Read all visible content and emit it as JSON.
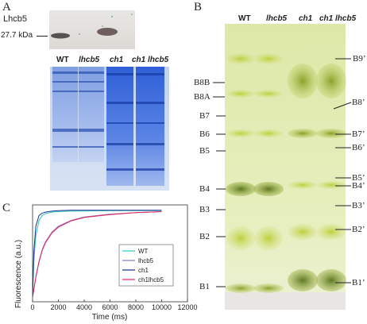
{
  "panel_a": {
    "letter": "A",
    "blot_title": "Lhcb5",
    "size_marker": "27.7 kDa",
    "lanes": [
      {
        "label": "WT",
        "italic": false
      },
      {
        "label": "lhcb5",
        "italic": true
      },
      {
        "label": "ch1",
        "italic": true
      },
      {
        "label": "ch1 lhcb5",
        "italic": true
      }
    ]
  },
  "panel_b": {
    "letter": "B",
    "lanes": [
      {
        "label": "WT",
        "italic": false
      },
      {
        "label": "lhcb5",
        "italic": true
      },
      {
        "label": "ch1",
        "italic": true
      },
      {
        "label": "ch1 lhcb5",
        "italic": true
      }
    ],
    "left_bands": [
      "B8B",
      "B8A",
      "B7",
      "B6",
      "B5",
      "B4",
      "B3",
      "B2",
      "B1"
    ],
    "right_bands": [
      "B9’",
      "B8’",
      "B7’",
      "B6’",
      "B5’",
      "B4’",
      "B3’",
      "B2’",
      "B1’"
    ]
  },
  "panel_c": {
    "letter": "C",
    "chart_data": {
      "type": "line",
      "xlabel": "Time (ms)",
      "ylabel": "Fluorescence (a.u.)",
      "xlim": [
        0,
        12000
      ],
      "x_ticks": [
        "0",
        "2000",
        "4000",
        "6000",
        "8000",
        "10000",
        "12000"
      ],
      "y_ticks": [],
      "grid": false,
      "legend_position": "center-right",
      "series": [
        {
          "name": "WT",
          "color": "#2ec7b6",
          "x": [
            0,
            100,
            250,
            500,
            750,
            1000,
            1500,
            2000,
            3000,
            4000,
            6000,
            8000,
            10000
          ],
          "y": [
            0.05,
            0.42,
            0.68,
            0.84,
            0.89,
            0.91,
            0.925,
            0.93,
            0.935,
            0.937,
            0.94,
            0.94,
            0.94
          ]
        },
        {
          "name": "lhcb5",
          "color": "#9470c8",
          "x": [
            0,
            100,
            250,
            500,
            750,
            1000,
            1500,
            2000,
            3000,
            4000,
            6000,
            8000,
            10000
          ],
          "y": [
            0.05,
            0.13,
            0.26,
            0.42,
            0.54,
            0.62,
            0.72,
            0.78,
            0.84,
            0.875,
            0.905,
            0.92,
            0.93
          ]
        },
        {
          "name": "ch1",
          "color": "#1c2c8c",
          "x": [
            0,
            100,
            250,
            500,
            750,
            1000,
            1500,
            2000,
            3000,
            4000,
            6000,
            8000,
            10000
          ],
          "y": [
            0.05,
            0.52,
            0.78,
            0.89,
            0.915,
            0.925,
            0.935,
            0.94,
            0.945,
            0.945,
            0.945,
            0.945,
            0.945
          ]
        },
        {
          "name": "ch1lhcb5",
          "color": "#e0285a",
          "x": [
            0,
            100,
            250,
            500,
            750,
            1000,
            1500,
            2000,
            3000,
            4000,
            6000,
            8000,
            10000
          ],
          "y": [
            0.05,
            0.12,
            0.25,
            0.41,
            0.53,
            0.61,
            0.71,
            0.77,
            0.835,
            0.87,
            0.9,
            0.92,
            0.93
          ]
        }
      ]
    }
  }
}
